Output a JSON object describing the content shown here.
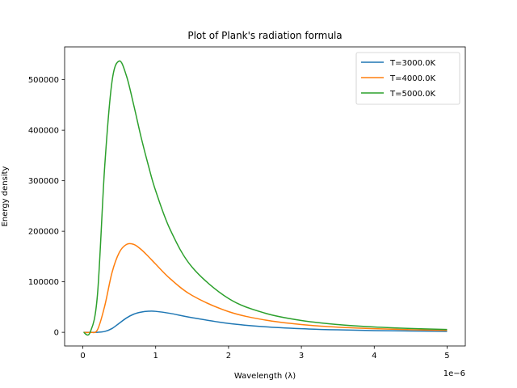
{
  "chart_data": {
    "type": "line",
    "title": "Plot of Plank's radiation formula",
    "xlabel": "Wavelength (λ)",
    "ylabel": "Energy density",
    "x_offset_label": "1e−6",
    "xlim": [
      -2.5e-07,
      5.25e-06
    ],
    "ylim": [
      -27000,
      565000
    ],
    "x_ticks": [
      0,
      1e-06,
      2e-06,
      3e-06,
      4e-06,
      5e-06
    ],
    "x_tick_labels": [
      "0",
      "1",
      "2",
      "3",
      "4",
      "5"
    ],
    "y_ticks": [
      0,
      100000,
      200000,
      300000,
      400000,
      500000
    ],
    "y_tick_labels": [
      "0",
      "100000",
      "200000",
      "300000",
      "400000",
      "500000"
    ],
    "grid": false,
    "legend_position": "top-right",
    "x": [
      1e-08,
      1e-07,
      2e-07,
      3e-07,
      4e-07,
      5e-07,
      6e-07,
      7e-07,
      8e-07,
      9e-07,
      1e-06,
      1.2e-06,
      1.5e-06,
      2e-06,
      2.5e-06,
      3e-06,
      3.5e-06,
      4e-06,
      4.5e-06,
      5e-06
    ],
    "series": [
      {
        "name": "T=3000.0K",
        "color": "#1f77b4",
        "values": [
          0,
          0,
          50,
          1700,
          7500,
          18000,
          28500,
          36000,
          40000,
          41700,
          41500,
          37500,
          29000,
          17600,
          11000,
          7200,
          4900,
          3500,
          2600,
          1900
        ]
      },
      {
        "name": "T=4000.0K",
        "color": "#ff7f0e",
        "values": [
          0,
          0,
          4800,
          52000,
          118000,
          158000,
          174000,
          174000,
          164000,
          150000,
          135000,
          106000,
          73000,
          41000,
          24400,
          15400,
          10300,
          7200,
          5200,
          3900
        ]
      },
      {
        "name": "T=5000.0K",
        "color": "#2ca02c",
        "values": [
          0,
          0,
          73000,
          328000,
          496000,
          537000,
          507000,
          449000,
          386000,
          330000,
          280000,
          203000,
          129000,
          67000,
          38000,
          23400,
          15400,
          10600,
          7600,
          5600
        ]
      }
    ]
  }
}
